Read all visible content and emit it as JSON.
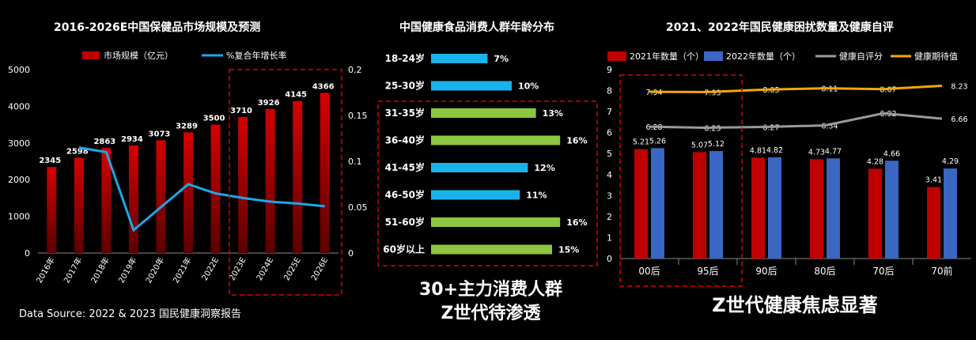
{
  "source_note": "Data Source: 2022 & 2023 国民健康洞察报告",
  "chart_data": [
    {
      "type": "bar",
      "title": "2016-2026E中国保健品市场规模及预测",
      "categories": [
        "2016年",
        "2017年",
        "2018年",
        "2019年",
        "2020年",
        "2021年",
        "2022E",
        "2023E",
        "2024E",
        "2025E",
        "2026E"
      ],
      "series": [
        {
          "name": "市场规模（亿元）",
          "type": "bar",
          "axis": "left",
          "color": "#c00000",
          "values": [
            2345,
            2598,
            2863,
            2934,
            3073,
            3289,
            3500,
            3710,
            3926,
            4145,
            4366
          ]
        },
        {
          "name": "%复合年增长率",
          "type": "line",
          "axis": "right",
          "color": "#1ea6e6",
          "values": [
            null,
            0.115,
            0.11,
            0.025,
            null,
            0.075,
            0.065,
            0.06,
            0.056,
            0.054,
            0.051
          ]
        }
      ],
      "ylim": [
        0,
        5000
      ],
      "yticks": [
        0,
        1000,
        2000,
        3000,
        4000,
        5000
      ],
      "y2lim": [
        0,
        0.2
      ],
      "y2ticks": [
        "0",
        "0.05",
        "0.1",
        "0.15",
        "0.2"
      ],
      "legend": "top"
    },
    {
      "type": "bar",
      "orientation": "horizontal",
      "title": "中国健康食品消费人群年龄分布",
      "categories": [
        "18-24岁",
        "25-30岁",
        "31-35岁",
        "36-40岁",
        "41-45岁",
        "46-50岁",
        "51-60岁",
        "60岁以上"
      ],
      "values": [
        7,
        10,
        13,
        16,
        12,
        11,
        16,
        15
      ],
      "value_labels": [
        "7%",
        "10%",
        "13%",
        "16%",
        "12%",
        "11%",
        "16%",
        "15%"
      ],
      "colors": [
        "#1ab2ea",
        "#1ab2ea",
        "#8dc63f",
        "#8dc63f",
        "#1ab2ea",
        "#1ab2ea",
        "#8dc63f",
        "#8dc63f"
      ],
      "callout": [
        "30+主力消费人群",
        "Z世代待渗透"
      ]
    },
    {
      "type": "bar",
      "title": "2021、2022年国民健康困扰数量及健康自评",
      "categories": [
        "00后",
        "95后",
        "90后",
        "80后",
        "70后",
        "70前"
      ],
      "series": [
        {
          "name": "2021年数量（个）",
          "type": "bar",
          "color": "#c00000",
          "values": [
            5.21,
            5.07,
            4.81,
            4.73,
            4.28,
            3.41
          ]
        },
        {
          "name": "2022年数量（个）",
          "type": "bar",
          "color": "#3a66c4",
          "values": [
            5.26,
            5.12,
            4.82,
            4.77,
            4.66,
            4.29
          ]
        },
        {
          "name": "健康自评分",
          "type": "line",
          "color": "#9a9a9a",
          "values": [
            6.28,
            6.23,
            6.27,
            6.34,
            6.92,
            6.66
          ]
        },
        {
          "name": "健康期待值",
          "type": "line",
          "color": "#f2a900",
          "values": [
            7.94,
            7.93,
            8.05,
            8.11,
            8.07,
            8.23
          ]
        }
      ],
      "ylim": [
        0,
        9
      ],
      "yticks": [
        0,
        1,
        2,
        3,
        4,
        5,
        6,
        7,
        8,
        9
      ],
      "legend": "top",
      "callout": "Z世代健康焦虑显著"
    }
  ]
}
